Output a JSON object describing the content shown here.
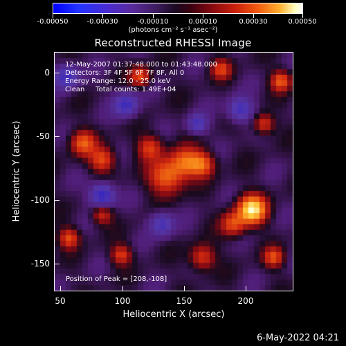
{
  "colorbar": {
    "tick_labels": [
      "-0.00050",
      "-0.00030",
      "-0.00010",
      "0.00010",
      "0.00030",
      "0.00050"
    ],
    "unit_label": "(photons cm⁻² s⁻¹ asec⁻²)"
  },
  "title": "Reconstructed RHESSI Image",
  "info": {
    "time_range": "12-May-2007 01:37:48.000 to 01:43:48.000",
    "detectors": "Detectors: 3F 4F 5F 6F 7F 8F, All 0",
    "energy_range": "Energy Range: 12.0 - 25.0 keV",
    "algorithm_counts": "Clean     Total counts: 1.49E+04",
    "peak_position": "Position of Peak = [208,-108]"
  },
  "axes": {
    "xlabel": "Heliocentric X (arcsec)",
    "ylabel": "Heliocentric Y (arcsec)",
    "xticks": [
      "50",
      "100",
      "150",
      "200"
    ],
    "yticks": [
      "0",
      "-50",
      "-100",
      "-150"
    ]
  },
  "timestamp": "6-May-2022 04:21"
}
